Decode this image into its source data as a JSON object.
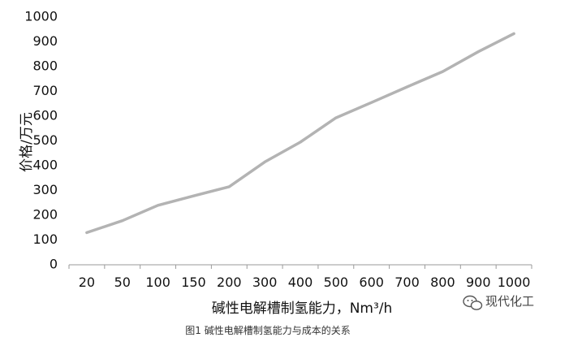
{
  "chart_data": {
    "type": "line",
    "categories": [
      "20",
      "50",
      "100",
      "150",
      "200",
      "300",
      "400",
      "500",
      "600",
      "700",
      "800",
      "900",
      "1000"
    ],
    "series": [
      {
        "values": [
          130,
          178,
          240,
          278,
          315,
          415,
          495,
          593,
          655,
          718,
          780,
          860,
          933
        ]
      }
    ],
    "xlabel": "碱性电解槽制氢能力，Nm³/h",
    "ylabel": "价格/万元",
    "ylim": [
      0,
      1000
    ],
    "yticks": [
      0,
      100,
      200,
      300,
      400,
      500,
      600,
      700,
      800,
      900,
      1000
    ],
    "grid": false,
    "legend": "none",
    "line_color": "#b3b3b3"
  },
  "caption": "图1  碱性电解槽制氢能力与成本的关系",
  "watermark": {
    "icon": "wechat-icon",
    "text": "现代化工"
  }
}
